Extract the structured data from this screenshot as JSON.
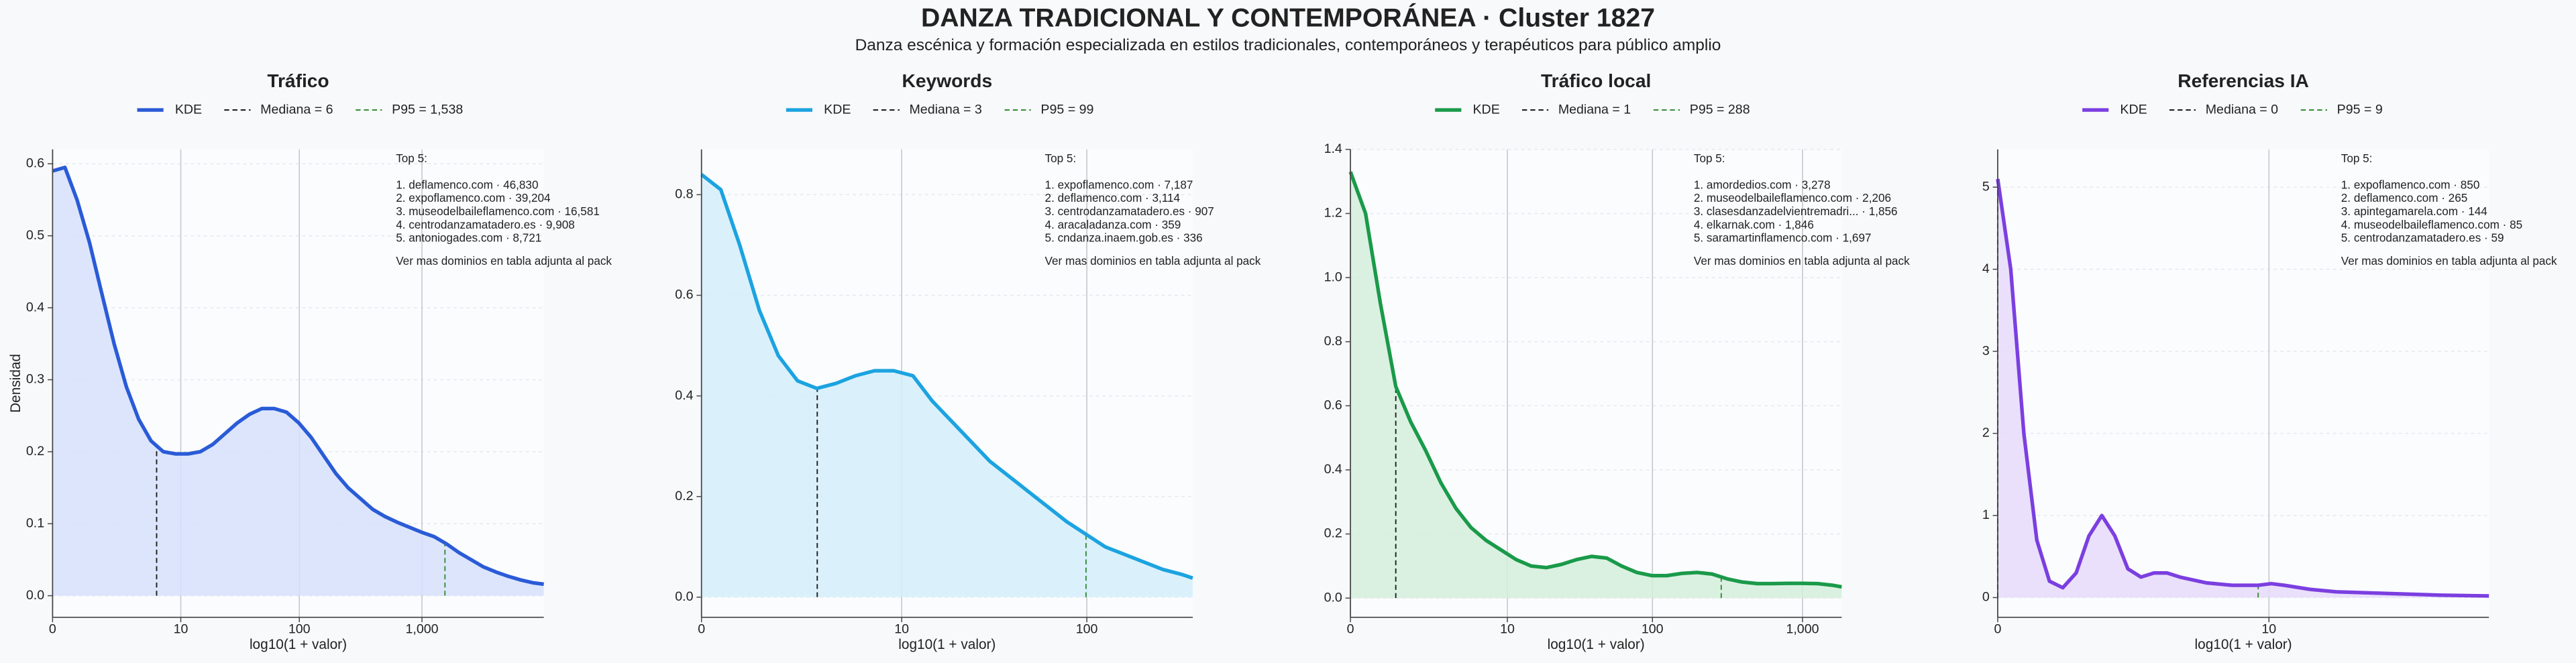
{
  "title": "DANZA TRADICIONAL Y CONTEMPORÁNEA · Cluster 1827",
  "subtitle": "Danza escénica y formación especializada en estilos tradicionales, contemporáneos y terapéuticos para público amplio",
  "chart_data": [
    {
      "type": "kde",
      "title": "Tráfico",
      "xlabel": "log10(1 + valor)",
      "ylabel": "Densidad",
      "x_scale": "log1p",
      "xlim": [
        0,
        9771
      ],
      "xticks": [
        0,
        10,
        100,
        {
          "value": 1000,
          "label": "1,000"
        }
      ],
      "ylim": [
        -0.03,
        0.62
      ],
      "yticks": [
        {
          "value": 0,
          "label": "0.0"
        },
        0.1,
        0.2,
        0.3,
        0.4,
        0.5,
        0.6
      ],
      "grid": true,
      "series": [
        {
          "name": "KDE",
          "color": "#2a5bd7",
          "fill": "#d6e0fb",
          "x": [
            0,
            0.26,
            0.58,
            1,
            1.51,
            2.16,
            2.98,
            4.01,
            5.31,
            6.94,
            9,
            11.59,
            14.85,
            18.95,
            24.12,
            30.62,
            38.81,
            49.12,
            62.1,
            78.43,
            99,
            124.9,
            157.5,
            198.5,
            250.2,
            315.2,
            397.1,
            500.2,
            630,
            793.3,
            999,
            1258,
            1584,
            1994,
            2511,
            3161,
            3980,
            5011,
            6309,
            7942,
            9771
          ],
          "values": [
            0.59,
            0.595,
            0.55,
            0.49,
            0.42,
            0.35,
            0.29,
            0.245,
            0.215,
            0.2,
            0.197,
            0.197,
            0.2,
            0.21,
            0.225,
            0.24,
            0.252,
            0.26,
            0.26,
            0.255,
            0.24,
            0.22,
            0.195,
            0.17,
            0.15,
            0.135,
            0.12,
            0.11,
            0.102,
            0.095,
            0.088,
            0.082,
            0.072,
            0.06,
            0.05,
            0.04,
            0.033,
            0.027,
            0.022,
            0.018,
            0.016
          ]
        }
      ],
      "median": {
        "label": "Mediana = 6",
        "value": 6,
        "color": "#222222"
      },
      "p95": {
        "label": "P95 = 1,538",
        "value": 1538,
        "color": "#3a8f3a"
      },
      "top5_title": "Top 5:",
      "top5": [
        "1. deflamenco.com · 46,830",
        "2. expoflamenco.com · 39,204",
        "3. museodelbaileflamenco.com · 16,581",
        "4. centrodanzamatadero.es · 9,908",
        "5. antoniogades.com · 8,721"
      ],
      "top5_note": "Ver mas dominios en tabla adjunta al pack"
    },
    {
      "type": "kde",
      "title": "Keywords",
      "xlabel": "log10(1 + valor)",
      "x_scale": "log1p",
      "xlim": [
        0,
        358
      ],
      "xticks": [
        0,
        10,
        100
      ],
      "ylim": [
        -0.04,
        0.89
      ],
      "yticks": [
        {
          "value": 0,
          "label": "0.0"
        },
        0.2,
        0.4,
        0.6,
        0.8
      ],
      "grid": true,
      "series": [
        {
          "name": "KDE",
          "color": "#1ca3e0",
          "fill": "#d3eefb",
          "x": [
            0,
            0.26,
            0.58,
            1,
            1.51,
            2.16,
            2.98,
            4.01,
            5.31,
            6.94,
            9,
            11.59,
            14.85,
            18.95,
            24.12,
            30.62,
            38.81,
            49.12,
            62.1,
            78.43,
            99,
            124.9,
            157.5,
            198.5,
            250.2,
            315.2,
            358
          ],
          "values": [
            0.84,
            0.81,
            0.7,
            0.57,
            0.48,
            0.43,
            0.415,
            0.425,
            0.44,
            0.45,
            0.45,
            0.44,
            0.39,
            0.35,
            0.31,
            0.27,
            0.24,
            0.21,
            0.18,
            0.15,
            0.125,
            0.1,
            0.085,
            0.07,
            0.055,
            0.045,
            0.038
          ]
        }
      ],
      "median": {
        "label": "Mediana = 3",
        "value": 3,
        "color": "#222222"
      },
      "p95": {
        "label": "P95 = 99",
        "value": 99,
        "color": "#3a8f3a"
      },
      "top5_title": "Top 5:",
      "top5": [
        "1. expoflamenco.com · 7,187",
        "2. deflamenco.com · 3,114",
        "3. centrodanzamatadero.es · 907",
        "4. aracaladanza.com · 359",
        "5. cndanza.inaem.gob.es · 336"
      ],
      "top5_note": "Ver mas dominios en tabla adjunta al pack"
    },
    {
      "type": "kde",
      "title": "Tráfico local",
      "xlabel": "log10(1 + valor)",
      "x_scale": "log1p",
      "xlim": [
        0,
        1819
      ],
      "xticks": [
        0,
        10,
        100,
        {
          "value": 1000,
          "label": "1,000"
        }
      ],
      "ylim": [
        -0.06,
        1.4
      ],
      "yticks": [
        {
          "value": 0,
          "label": "0.0"
        },
        0.2,
        0.4,
        0.6,
        0.8,
        {
          "value": 1,
          "label": "1.0"
        },
        1.2,
        1.4
      ],
      "grid": true,
      "series": [
        {
          "name": "KDE",
          "color": "#1a9a4a",
          "fill": "#d3efdc",
          "x": [
            0,
            0.26,
            0.58,
            1,
            1.51,
            2.16,
            2.98,
            4.01,
            5.31,
            6.94,
            9,
            11.59,
            14.85,
            18.95,
            24.12,
            30.62,
            38.81,
            49.12,
            62.1,
            78.43,
            99,
            124.9,
            157.5,
            198.5,
            250.2,
            315.2,
            397.1,
            500.2,
            630,
            793.3,
            999,
            1258,
            1584,
            1819
          ],
          "values": [
            1.33,
            1.2,
            0.92,
            0.66,
            0.55,
            0.46,
            0.36,
            0.28,
            0.22,
            0.18,
            0.15,
            0.12,
            0.1,
            0.095,
            0.105,
            0.12,
            0.13,
            0.125,
            0.1,
            0.08,
            0.07,
            0.07,
            0.077,
            0.08,
            0.075,
            0.06,
            0.05,
            0.045,
            0.045,
            0.046,
            0.046,
            0.045,
            0.04,
            0.035
          ]
        }
      ],
      "median": {
        "label": "Mediana = 1",
        "value": 1,
        "color": "#222222"
      },
      "p95": {
        "label": "P95 = 288",
        "value": 288,
        "color": "#3a8f3a"
      },
      "top5_title": "Top 5:",
      "top5": [
        "1. amordedios.com · 3,278",
        "2. museodelbaileflamenco.com · 2,206",
        "3. clasesdanzadelvientremadri... · 1,856",
        "4. elkarnak.com · 1,846",
        "5. saramartinflamenco.com · 1,697"
      ],
      "top5_note": "Ver mas dominios en tabla adjunta al pack"
    },
    {
      "type": "kde",
      "title": "Referencias IA",
      "xlabel": "log10(1 + valor)",
      "x_scale": "log1p",
      "xlim": [
        0,
        75.9
      ],
      "xticks": [
        0,
        10
      ],
      "ylim": [
        -0.24,
        5.46
      ],
      "yticks": [
        0,
        1,
        2,
        3,
        4,
        5
      ],
      "grid": true,
      "series": [
        {
          "name": "KDE",
          "color": "#7b3fe0",
          "fill": "#e6dafa",
          "x": [
            0,
            0.122,
            0.26,
            0.413,
            0.58,
            0.778,
            1,
            1.239,
            1.51,
            1.818,
            2.16,
            2.548,
            2.98,
            3.467,
            4.01,
            5.31,
            6.94,
            9,
            10.22,
            11.59,
            14.85,
            18.95,
            24.12,
            30.62,
            38.81,
            49.12,
            75.9
          ],
          "values": [
            5.1,
            4.0,
            2.0,
            0.7,
            0.2,
            0.12,
            0.3,
            0.75,
            1.0,
            0.75,
            0.35,
            0.25,
            0.3,
            0.3,
            0.25,
            0.18,
            0.15,
            0.15,
            0.17,
            0.15,
            0.1,
            0.07,
            0.06,
            0.05,
            0.04,
            0.03,
            0.02
          ]
        }
      ],
      "median": {
        "label": "Mediana = 0",
        "value": 0,
        "color": "#222222"
      },
      "p95": {
        "label": "P95 = 9",
        "value": 9,
        "color": "#3a8f3a"
      },
      "top5_title": "Top 5:",
      "top5": [
        "1. expoflamenco.com · 850",
        "2. deflamenco.com · 265",
        "3. apintegamarela.com · 144",
        "4. museodelbaileflamenco.com · 85",
        "5. centrodanzamatadero.es · 59"
      ],
      "top5_note": "Ver mas dominios en tabla adjunta al pack"
    }
  ]
}
